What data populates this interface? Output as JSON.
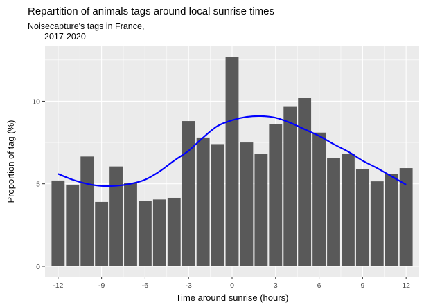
{
  "chart_data": {
    "type": "bar",
    "title": "Repartition of animals tags around local sunrise times",
    "subtitle_lines": [
      "Noisecapture's tags in France,",
      "2017-2020"
    ],
    "xlabel": "Time around sunrise (hours)",
    "ylabel": "Proportion of tag (%)",
    "x": [
      -12,
      -11,
      -10,
      -9,
      -8,
      -7,
      -6,
      -5,
      -4,
      -3,
      -2,
      -1,
      0,
      1,
      2,
      3,
      4,
      5,
      6,
      7,
      8,
      9,
      10,
      11,
      12
    ],
    "values": [
      5.2,
      4.95,
      6.65,
      3.9,
      6.05,
      5.05,
      3.95,
      4.05,
      4.15,
      8.8,
      7.8,
      7.4,
      12.7,
      7.5,
      6.8,
      8.6,
      9.7,
      10.2,
      8.1,
      6.55,
      6.8,
      5.9,
      5.15,
      5.6,
      5.95
    ],
    "smooth_line": {
      "x": [
        -12,
        -11,
        -10,
        -9,
        -8,
        -7,
        -6,
        -5,
        -4,
        -3,
        -2,
        -1,
        0,
        1,
        2,
        3,
        4,
        5,
        6,
        7,
        8,
        9,
        10,
        11,
        12
      ],
      "y": [
        5.6,
        5.25,
        5.0,
        4.87,
        4.88,
        5.0,
        5.25,
        5.75,
        6.4,
        7.0,
        7.8,
        8.5,
        8.85,
        9.05,
        9.1,
        9.0,
        8.7,
        8.3,
        7.9,
        7.4,
        6.95,
        6.4,
        5.95,
        5.45,
        4.95
      ],
      "color": "#0000FF"
    },
    "xticks": [
      -12,
      -9,
      -6,
      -3,
      0,
      3,
      6,
      9,
      12
    ],
    "yticks": [
      0,
      5,
      10
    ],
    "xlim": [
      -12.9,
      12.9
    ],
    "ylim": [
      -0.63,
      13.33
    ],
    "bar_color": "#595959",
    "panel_background": "#EBEBEB",
    "grid": true,
    "legend": "none"
  }
}
